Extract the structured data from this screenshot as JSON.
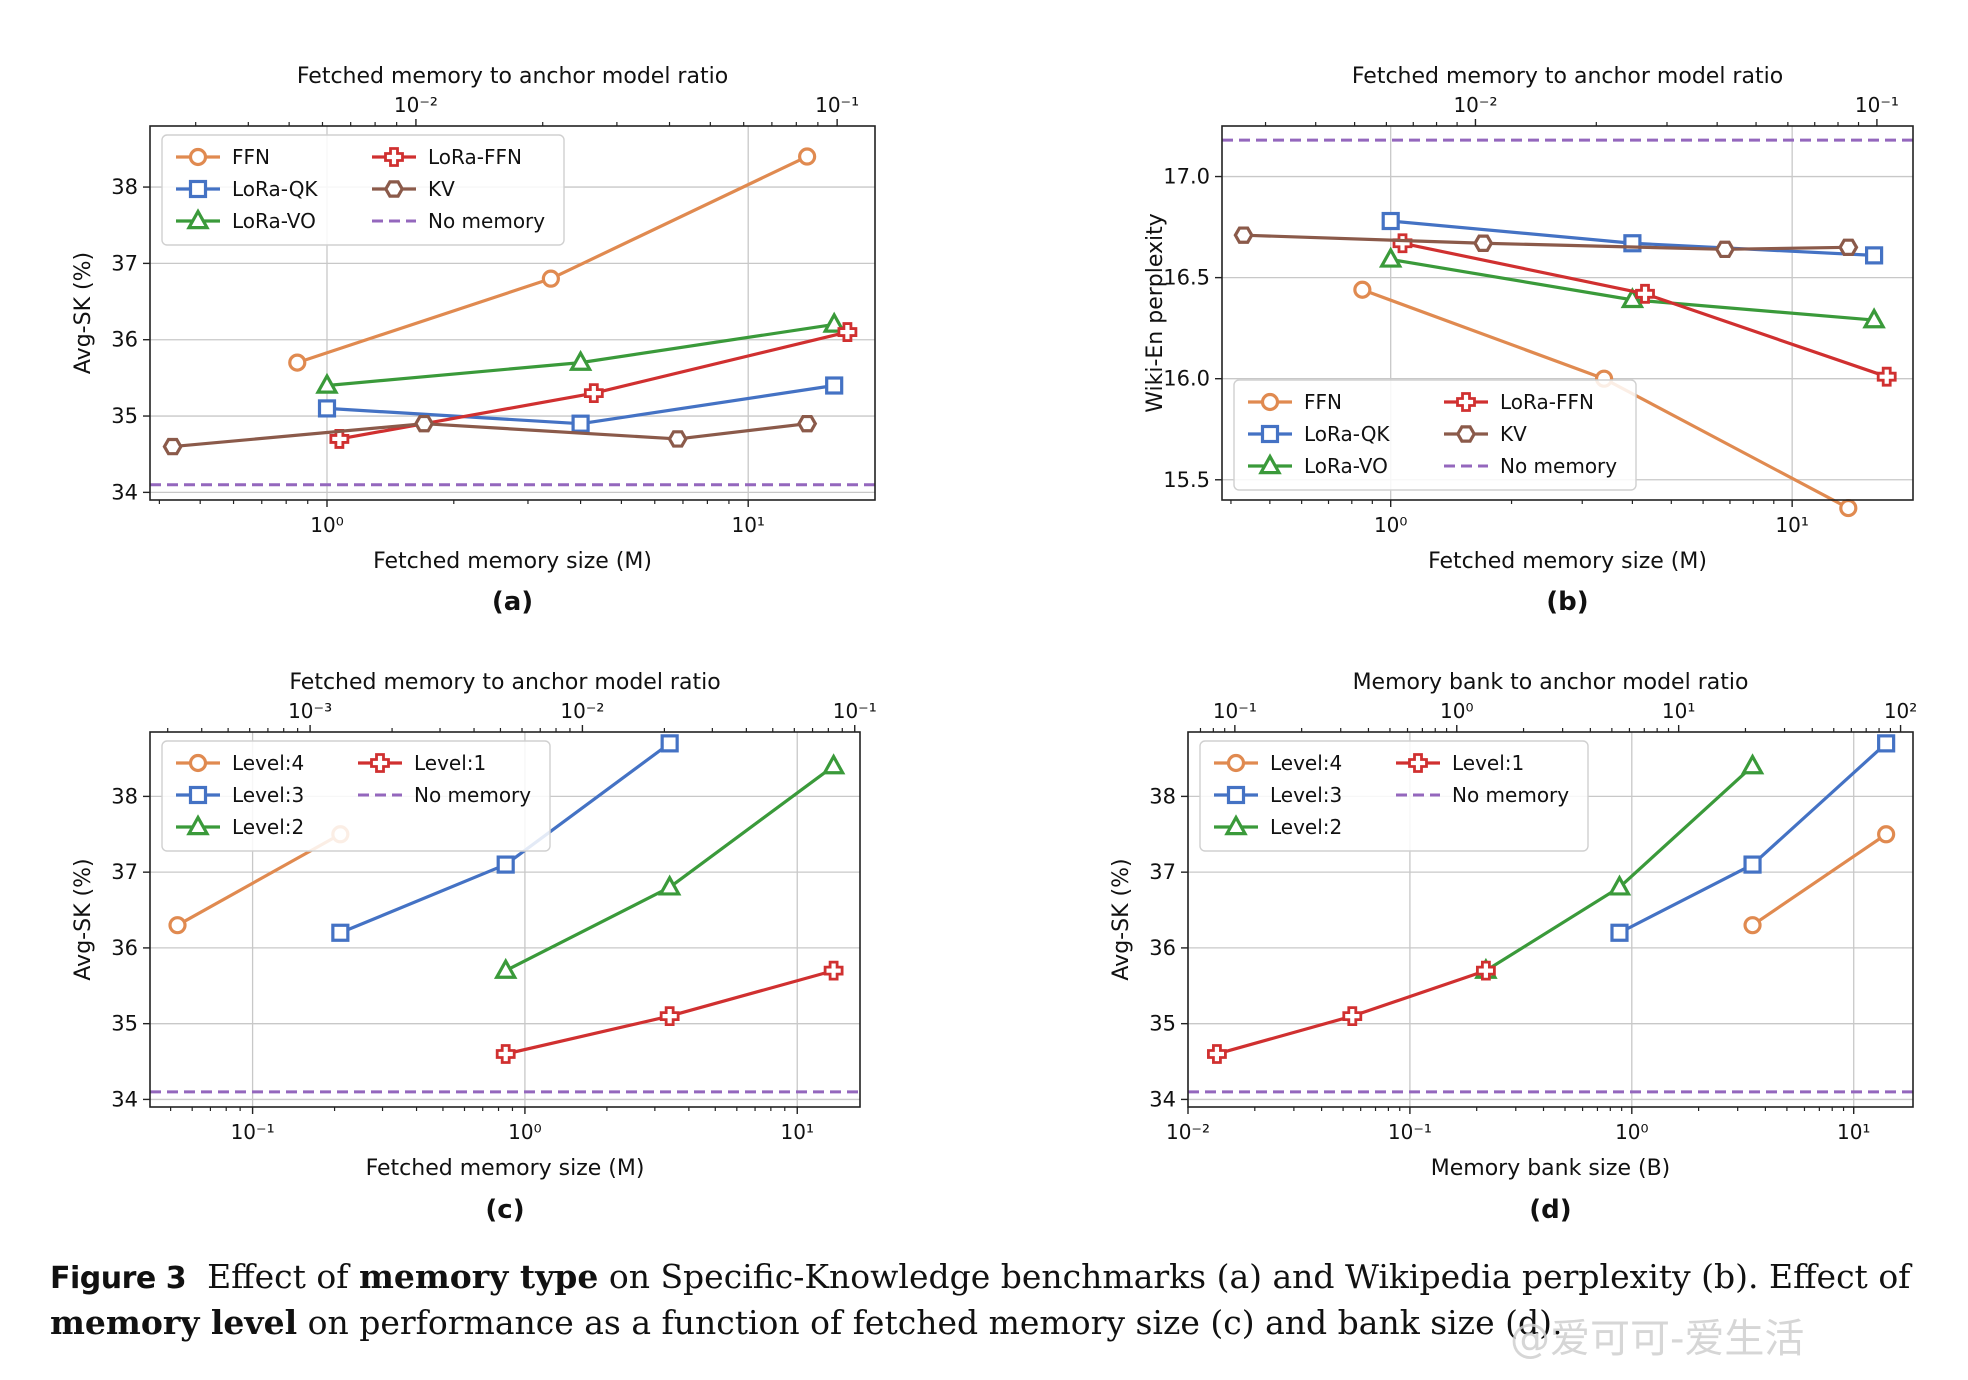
{
  "figure": {
    "caption": {
      "label": "Figure 3",
      "part1": "Effect of",
      "bold1": "memory type",
      "part2": "on Specific-Knowledge benchmarks (a) and Wikipedia perplexity (b). Effect of",
      "bold2": "memory level",
      "part3": "on performance as a function of fetched memory size (c) and bank size (d)."
    },
    "watermark": "@爱可可-爱生活"
  },
  "colors": {
    "orange": "#E08A50",
    "blue": "#4472C4",
    "green": "#3A9A3A",
    "red": "#D03030",
    "brown": "#8B5A4A",
    "purple": "#9467BD",
    "grid": "#c8c8c8"
  },
  "chart_data": [
    {
      "id": "a",
      "panel_label": "(a)",
      "type": "line",
      "xscale": "log",
      "xlim": [
        0.38,
        20
      ],
      "ylim": [
        33.9,
        38.8
      ],
      "xlabel": "Fetched memory size (M)",
      "ylabel": "Avg-SK (%)",
      "top_axis_label": "Fetched memory to anchor model ratio",
      "top_ratio_factor": 0.00615,
      "xticks": [
        1,
        10
      ],
      "xtick_labels": [
        "10⁰",
        "10¹"
      ],
      "yticks": [
        34,
        35,
        36,
        37,
        38
      ],
      "ytick_labels": [
        "34",
        "35",
        "36",
        "37",
        "38"
      ],
      "top_ticks": [
        0.01,
        0.1
      ],
      "top_tick_labels": [
        "10⁻²",
        "10⁻¹"
      ],
      "legend_cols": 2,
      "legend_position": "top-left",
      "series": [
        {
          "name": "FFN",
          "marker": "circle",
          "color": "orange",
          "x": [
            0.85,
            3.4,
            13.8
          ],
          "y": [
            35.7,
            36.8,
            38.4
          ]
        },
        {
          "name": "LoRa-QK",
          "marker": "square",
          "color": "blue",
          "x": [
            1.0,
            4.0,
            16.0
          ],
          "y": [
            35.1,
            34.9,
            35.4
          ]
        },
        {
          "name": "LoRa-VO",
          "marker": "triangle",
          "color": "green",
          "x": [
            1.0,
            4.0,
            16.0
          ],
          "y": [
            35.4,
            35.7,
            36.2
          ]
        },
        {
          "name": "LoRa-FFN",
          "marker": "plus",
          "color": "red",
          "x": [
            1.07,
            4.3,
            17.2
          ],
          "y": [
            34.7,
            35.3,
            36.1
          ]
        },
        {
          "name": "KV",
          "marker": "hexagon",
          "color": "brown",
          "x": [
            0.43,
            1.7,
            6.8,
            13.8
          ],
          "y": [
            34.6,
            34.9,
            34.7,
            34.9
          ]
        }
      ],
      "baseline": {
        "name": "No memory",
        "color": "purple",
        "y": 34.1
      }
    },
    {
      "id": "b",
      "panel_label": "(b)",
      "type": "line",
      "xscale": "log",
      "xlim": [
        0.38,
        20
      ],
      "ylim": [
        15.4,
        17.25
      ],
      "xlabel": "Fetched memory size (M)",
      "ylabel": "Wiki-En perplexity",
      "top_axis_label": "Fetched memory to anchor model ratio",
      "top_ratio_factor": 0.00615,
      "xticks": [
        1,
        10
      ],
      "xtick_labels": [
        "10⁰",
        "10¹"
      ],
      "yticks": [
        15.5,
        16.0,
        16.5,
        17.0
      ],
      "ytick_labels": [
        "15.5",
        "16.0",
        "16.5",
        "17.0"
      ],
      "top_ticks": [
        0.01,
        0.1
      ],
      "top_tick_labels": [
        "10⁻²",
        "10⁻¹"
      ],
      "legend_cols": 2,
      "legend_position": "bottom-left",
      "series": [
        {
          "name": "FFN",
          "marker": "circle",
          "color": "orange",
          "x": [
            0.85,
            3.4,
            13.8
          ],
          "y": [
            16.44,
            16.0,
            15.36
          ]
        },
        {
          "name": "LoRa-QK",
          "marker": "square",
          "color": "blue",
          "x": [
            1.0,
            4.0,
            16.0
          ],
          "y": [
            16.78,
            16.67,
            16.61
          ]
        },
        {
          "name": "LoRa-VO",
          "marker": "triangle",
          "color": "green",
          "x": [
            1.0,
            4.0,
            16.0
          ],
          "y": [
            16.59,
            16.39,
            16.29
          ]
        },
        {
          "name": "LoRa-FFN",
          "marker": "plus",
          "color": "red",
          "x": [
            1.07,
            4.3,
            17.2
          ],
          "y": [
            16.67,
            16.42,
            16.01
          ]
        },
        {
          "name": "KV",
          "marker": "hexagon",
          "color": "brown",
          "x": [
            0.43,
            1.7,
            6.8,
            13.8
          ],
          "y": [
            16.71,
            16.67,
            16.64,
            16.65
          ]
        }
      ],
      "baseline": {
        "name": "No memory",
        "color": "purple",
        "y": 17.18
      }
    },
    {
      "id": "c",
      "panel_label": "(c)",
      "type": "line",
      "xscale": "log",
      "xlim": [
        0.042,
        17
      ],
      "ylim": [
        33.9,
        38.85
      ],
      "xlabel": "Fetched memory size (M)",
      "ylabel": "Avg-SK (%)",
      "top_axis_label": "Fetched memory to anchor model ratio",
      "top_ratio_factor": 0.00615,
      "xticks": [
        0.1,
        1,
        10
      ],
      "xtick_labels": [
        "10⁻¹",
        "10⁰",
        "10¹"
      ],
      "yticks": [
        34,
        35,
        36,
        37,
        38
      ],
      "ytick_labels": [
        "34",
        "35",
        "36",
        "37",
        "38"
      ],
      "top_ticks": [
        0.001,
        0.01,
        0.1
      ],
      "top_tick_labels": [
        "10⁻³",
        "10⁻²",
        "10⁻¹"
      ],
      "legend_cols": 2,
      "legend_position": "top-left",
      "series": [
        {
          "name": "Level:4",
          "marker": "circle",
          "color": "orange",
          "x": [
            0.053,
            0.21
          ],
          "y": [
            36.3,
            37.5
          ]
        },
        {
          "name": "Level:3",
          "marker": "square",
          "color": "blue",
          "x": [
            0.21,
            0.85,
            3.4
          ],
          "y": [
            36.2,
            37.1,
            38.7
          ]
        },
        {
          "name": "Level:2",
          "marker": "triangle",
          "color": "green",
          "x": [
            0.85,
            3.4,
            13.6
          ],
          "y": [
            35.7,
            36.8,
            38.4
          ]
        },
        {
          "name": "Level:1",
          "marker": "plus",
          "color": "red",
          "x": [
            0.85,
            3.4,
            13.6
          ],
          "y": [
            34.6,
            35.1,
            35.7
          ]
        }
      ],
      "baseline": {
        "name": "No memory",
        "color": "purple",
        "y": 34.1
      }
    },
    {
      "id": "d",
      "panel_label": "(d)",
      "type": "line",
      "xscale": "log",
      "xlim": [
        0.01,
        18.5
      ],
      "ylim": [
        33.9,
        38.85
      ],
      "xlabel": "Memory bank size (B)",
      "ylabel": "Avg-SK (%)",
      "top_axis_label": "Memory bank to anchor model ratio",
      "top_ratio_factor": 6.15,
      "xticks": [
        0.01,
        0.1,
        1,
        10
      ],
      "xtick_labels": [
        "10⁻²",
        "10⁻¹",
        "10⁰",
        "10¹"
      ],
      "yticks": [
        34,
        35,
        36,
        37,
        38
      ],
      "ytick_labels": [
        "34",
        "35",
        "36",
        "37",
        "38"
      ],
      "top_ticks": [
        0.1,
        1,
        10,
        100
      ],
      "top_tick_labels": [
        "10⁻¹",
        "10⁰",
        "10¹",
        "10²"
      ],
      "legend_cols": 2,
      "legend_position": "top-left",
      "series": [
        {
          "name": "Level:4",
          "marker": "circle",
          "color": "orange",
          "x": [
            3.5,
            14.0
          ],
          "y": [
            36.3,
            37.5
          ]
        },
        {
          "name": "Level:3",
          "marker": "square",
          "color": "blue",
          "x": [
            0.88,
            3.5,
            14.0
          ],
          "y": [
            36.2,
            37.1,
            38.7
          ]
        },
        {
          "name": "Level:2",
          "marker": "triangle",
          "color": "green",
          "x": [
            0.22,
            0.88,
            3.5
          ],
          "y": [
            35.7,
            36.8,
            38.4
          ]
        },
        {
          "name": "Level:1",
          "marker": "plus",
          "color": "red",
          "x": [
            0.0135,
            0.055,
            0.22
          ],
          "y": [
            34.6,
            35.1,
            35.7
          ]
        }
      ],
      "baseline": {
        "name": "No memory",
        "color": "purple",
        "y": 34.1
      }
    }
  ]
}
